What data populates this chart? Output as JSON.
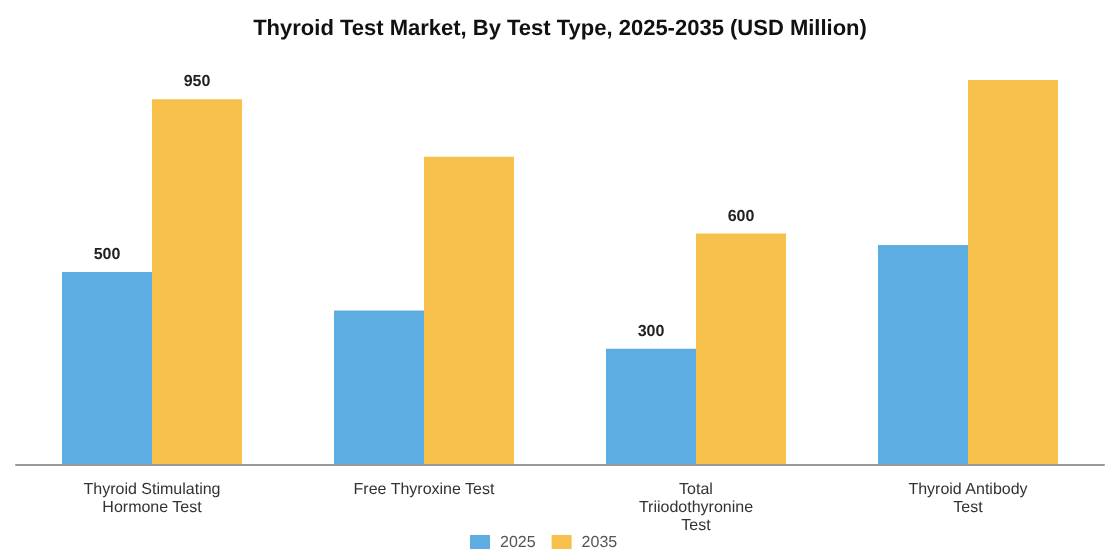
{
  "chart_data": {
    "type": "bar",
    "title": "Thyroid Test Market, By Test Type, 2025-2035 (USD Million)",
    "categories": [
      "Thyroid Stimulating\nHormone Test",
      "Free Thyroxine Test",
      "Total\nTriiodothyronine\nTest",
      "Thyroid Antibody\nTest"
    ],
    "series": [
      {
        "name": "2025",
        "color": "#5dade2",
        "values": [
          500,
          400,
          300,
          570
        ],
        "value_labels": [
          "500",
          null,
          "300",
          null
        ]
      },
      {
        "name": "2035",
        "color": "#f7c04a",
        "values": [
          950,
          800,
          600,
          1000
        ],
        "value_labels": [
          "950",
          null,
          "600",
          null
        ]
      }
    ],
    "legend": "bottom"
  }
}
